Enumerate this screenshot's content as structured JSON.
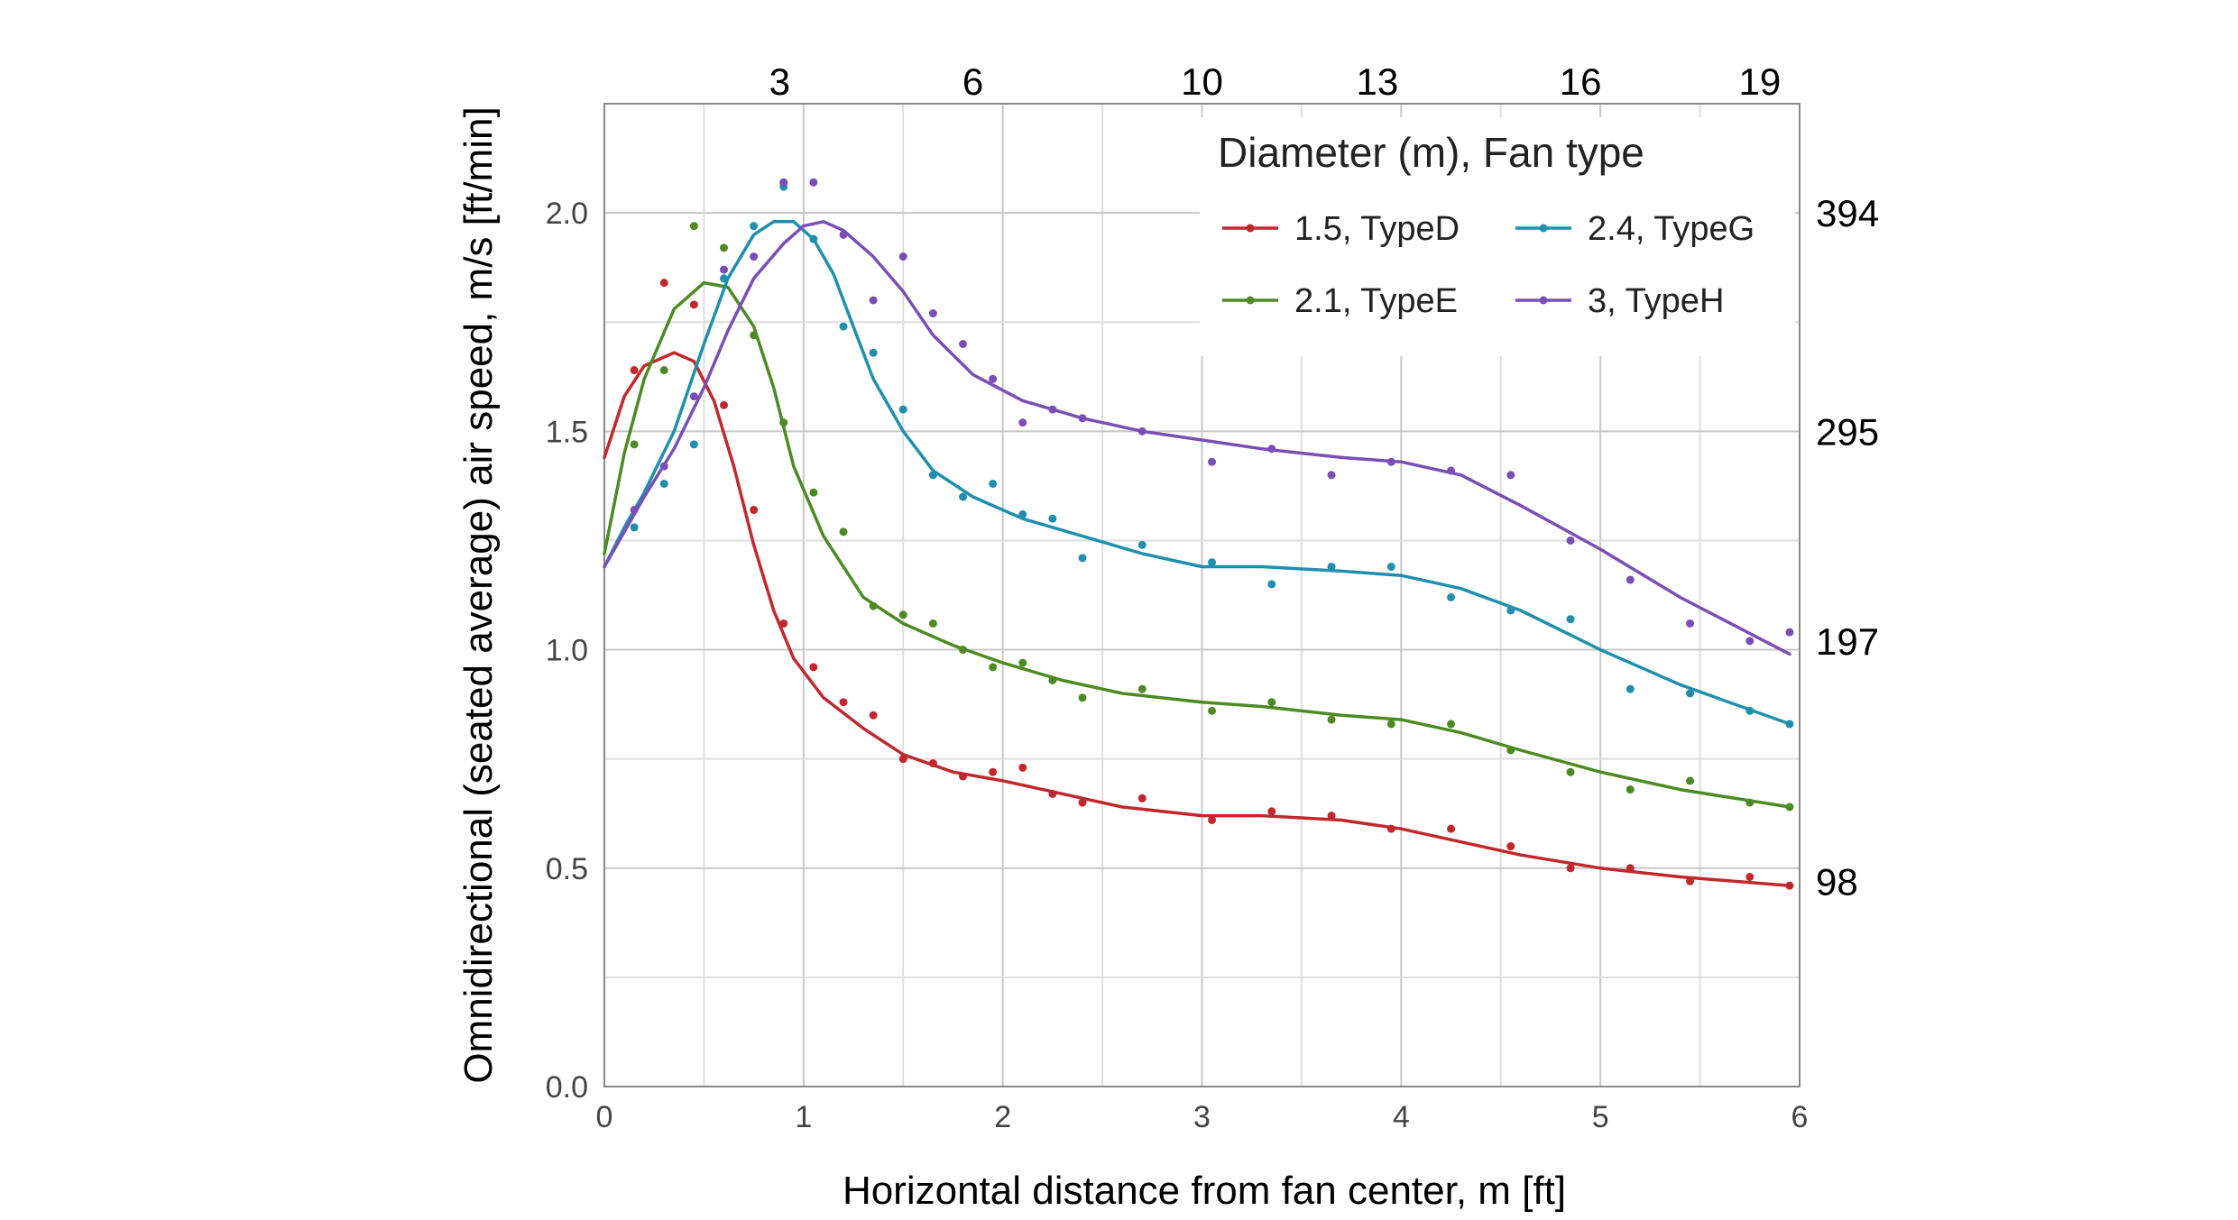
{
  "chart_data": {
    "type": "line",
    "title": "",
    "xlabel": "Horizontal distance from fan center, m [ft]",
    "ylabel": "Omnidirectional (seated average) air speed, m/s [ft/min]",
    "xlim": [
      0,
      6
    ],
    "ylim": [
      0,
      2.25
    ],
    "x_ticks": [
      "0",
      "1",
      "2",
      "3",
      "4",
      "5",
      "6"
    ],
    "y_ticks": [
      "0.0",
      "0.5",
      "1.0",
      "1.5",
      "2.0"
    ],
    "x_ticks_ft": [
      {
        "label": "3",
        "x": 0.88
      },
      {
        "label": "6",
        "x": 1.85
      },
      {
        "label": "10",
        "x": 3.0
      },
      {
        "label": "13",
        "x": 3.88
      },
      {
        "label": "16",
        "x": 4.9
      },
      {
        "label": "19",
        "x": 5.8
      }
    ],
    "y_ticks_ft": [
      {
        "label": "394",
        "y": 2.0
      },
      {
        "label": "295",
        "y": 1.5
      },
      {
        "label": "197",
        "y": 1.02
      },
      {
        "label": "98",
        "y": 0.47
      }
    ],
    "grid": true,
    "legend": {
      "title": "Diameter (m), Fan type",
      "placement": "top-right"
    },
    "series": [
      {
        "name": "1.5, TypeD",
        "color": "#c0282d",
        "curve": [
          [
            0,
            1.44
          ],
          [
            0.1,
            1.58
          ],
          [
            0.2,
            1.65
          ],
          [
            0.35,
            1.68
          ],
          [
            0.45,
            1.66
          ],
          [
            0.55,
            1.57
          ],
          [
            0.65,
            1.42
          ],
          [
            0.75,
            1.24
          ],
          [
            0.85,
            1.09
          ],
          [
            0.95,
            0.98
          ],
          [
            1.1,
            0.89
          ],
          [
            1.3,
            0.82
          ],
          [
            1.5,
            0.76
          ],
          [
            1.75,
            0.72
          ],
          [
            2.0,
            0.7
          ],
          [
            2.3,
            0.67
          ],
          [
            2.6,
            0.64
          ],
          [
            3.0,
            0.62
          ],
          [
            3.3,
            0.62
          ],
          [
            3.7,
            0.61
          ],
          [
            4.0,
            0.59
          ],
          [
            4.3,
            0.56
          ],
          [
            4.6,
            0.53
          ],
          [
            5.0,
            0.5
          ],
          [
            5.4,
            0.48
          ],
          [
            5.95,
            0.46
          ]
        ],
        "points": [
          [
            0.15,
            1.64
          ],
          [
            0.3,
            1.84
          ],
          [
            0.45,
            1.79
          ],
          [
            0.6,
            1.56
          ],
          [
            0.75,
            1.32
          ],
          [
            0.9,
            1.06
          ],
          [
            1.05,
            0.96
          ],
          [
            1.2,
            0.88
          ],
          [
            1.35,
            0.85
          ],
          [
            1.5,
            0.75
          ],
          [
            1.65,
            0.74
          ],
          [
            1.8,
            0.71
          ],
          [
            1.95,
            0.72
          ],
          [
            2.1,
            0.73
          ],
          [
            2.25,
            0.67
          ],
          [
            2.4,
            0.65
          ],
          [
            2.7,
            0.66
          ],
          [
            3.05,
            0.61
          ],
          [
            3.35,
            0.63
          ],
          [
            3.65,
            0.62
          ],
          [
            3.95,
            0.59
          ],
          [
            4.25,
            0.59
          ],
          [
            4.55,
            0.55
          ],
          [
            4.85,
            0.5
          ],
          [
            5.15,
            0.5
          ],
          [
            5.45,
            0.47
          ],
          [
            5.75,
            0.48
          ],
          [
            5.95,
            0.46
          ]
        ]
      },
      {
        "name": "2.1, TypeE",
        "color": "#4d8a24",
        "curve": [
          [
            0,
            1.22
          ],
          [
            0.1,
            1.45
          ],
          [
            0.2,
            1.62
          ],
          [
            0.35,
            1.78
          ],
          [
            0.5,
            1.84
          ],
          [
            0.62,
            1.83
          ],
          [
            0.75,
            1.74
          ],
          [
            0.85,
            1.6
          ],
          [
            0.95,
            1.42
          ],
          [
            1.1,
            1.26
          ],
          [
            1.3,
            1.12
          ],
          [
            1.5,
            1.06
          ],
          [
            1.75,
            1.01
          ],
          [
            2.0,
            0.97
          ],
          [
            2.3,
            0.93
          ],
          [
            2.6,
            0.9
          ],
          [
            3.0,
            0.88
          ],
          [
            3.3,
            0.87
          ],
          [
            3.7,
            0.85
          ],
          [
            4.0,
            0.84
          ],
          [
            4.3,
            0.81
          ],
          [
            4.6,
            0.77
          ],
          [
            5.0,
            0.72
          ],
          [
            5.4,
            0.68
          ],
          [
            5.95,
            0.64
          ]
        ],
        "points": [
          [
            0.15,
            1.47
          ],
          [
            0.3,
            1.64
          ],
          [
            0.45,
            1.97
          ],
          [
            0.6,
            1.92
          ],
          [
            0.75,
            1.72
          ],
          [
            0.9,
            1.52
          ],
          [
            1.05,
            1.36
          ],
          [
            1.2,
            1.27
          ],
          [
            1.35,
            1.1
          ],
          [
            1.5,
            1.08
          ],
          [
            1.65,
            1.06
          ],
          [
            1.8,
            1.0
          ],
          [
            1.95,
            0.96
          ],
          [
            2.1,
            0.97
          ],
          [
            2.25,
            0.93
          ],
          [
            2.4,
            0.89
          ],
          [
            2.7,
            0.91
          ],
          [
            3.05,
            0.86
          ],
          [
            3.35,
            0.88
          ],
          [
            3.65,
            0.84
          ],
          [
            3.95,
            0.83
          ],
          [
            4.25,
            0.83
          ],
          [
            4.55,
            0.77
          ],
          [
            4.85,
            0.72
          ],
          [
            5.15,
            0.68
          ],
          [
            5.45,
            0.7
          ],
          [
            5.75,
            0.65
          ],
          [
            5.95,
            0.64
          ]
        ]
      },
      {
        "name": "2.4, TypeG",
        "color": "#1f8fad",
        "curve": [
          [
            0,
            1.19
          ],
          [
            0.1,
            1.28
          ],
          [
            0.2,
            1.36
          ],
          [
            0.35,
            1.5
          ],
          [
            0.5,
            1.7
          ],
          [
            0.62,
            1.85
          ],
          [
            0.75,
            1.95
          ],
          [
            0.85,
            1.98
          ],
          [
            0.95,
            1.98
          ],
          [
            1.05,
            1.94
          ],
          [
            1.15,
            1.86
          ],
          [
            1.25,
            1.74
          ],
          [
            1.35,
            1.62
          ],
          [
            1.5,
            1.5
          ],
          [
            1.65,
            1.41
          ],
          [
            1.85,
            1.35
          ],
          [
            2.1,
            1.3
          ],
          [
            2.4,
            1.26
          ],
          [
            2.7,
            1.22
          ],
          [
            3.0,
            1.19
          ],
          [
            3.3,
            1.19
          ],
          [
            3.7,
            1.18
          ],
          [
            4.0,
            1.17
          ],
          [
            4.3,
            1.14
          ],
          [
            4.6,
            1.09
          ],
          [
            5.0,
            1.0
          ],
          [
            5.4,
            0.92
          ],
          [
            5.95,
            0.83
          ]
        ],
        "points": [
          [
            0.15,
            1.28
          ],
          [
            0.3,
            1.38
          ],
          [
            0.45,
            1.47
          ],
          [
            0.6,
            1.85
          ],
          [
            0.75,
            1.97
          ],
          [
            0.9,
            2.06
          ],
          [
            1.05,
            1.94
          ],
          [
            1.2,
            1.74
          ],
          [
            1.35,
            1.68
          ],
          [
            1.5,
            1.55
          ],
          [
            1.65,
            1.4
          ],
          [
            1.8,
            1.35
          ],
          [
            1.95,
            1.38
          ],
          [
            2.1,
            1.31
          ],
          [
            2.25,
            1.3
          ],
          [
            2.4,
            1.21
          ],
          [
            2.7,
            1.24
          ],
          [
            3.05,
            1.2
          ],
          [
            3.35,
            1.15
          ],
          [
            3.65,
            1.19
          ],
          [
            3.95,
            1.19
          ],
          [
            4.25,
            1.12
          ],
          [
            4.55,
            1.09
          ],
          [
            4.85,
            1.07
          ],
          [
            5.15,
            0.91
          ],
          [
            5.45,
            0.9
          ],
          [
            5.75,
            0.86
          ],
          [
            5.95,
            0.83
          ]
        ]
      },
      {
        "name": "3, TypeH",
        "color": "#7a4fb5",
        "curve": [
          [
            0,
            1.19
          ],
          [
            0.1,
            1.27
          ],
          [
            0.2,
            1.35
          ],
          [
            0.35,
            1.46
          ],
          [
            0.5,
            1.6
          ],
          [
            0.62,
            1.73
          ],
          [
            0.75,
            1.85
          ],
          [
            0.9,
            1.93
          ],
          [
            1.0,
            1.97
          ],
          [
            1.1,
            1.98
          ],
          [
            1.2,
            1.96
          ],
          [
            1.35,
            1.9
          ],
          [
            1.5,
            1.82
          ],
          [
            1.65,
            1.72
          ],
          [
            1.85,
            1.63
          ],
          [
            2.1,
            1.57
          ],
          [
            2.4,
            1.53
          ],
          [
            2.7,
            1.5
          ],
          [
            3.0,
            1.48
          ],
          [
            3.3,
            1.46
          ],
          [
            3.7,
            1.44
          ],
          [
            4.0,
            1.43
          ],
          [
            4.3,
            1.4
          ],
          [
            4.6,
            1.33
          ],
          [
            5.0,
            1.23
          ],
          [
            5.4,
            1.12
          ],
          [
            5.95,
            0.99
          ]
        ],
        "points": [
          [
            0.15,
            1.32
          ],
          [
            0.3,
            1.42
          ],
          [
            0.45,
            1.58
          ],
          [
            0.6,
            1.87
          ],
          [
            0.75,
            1.9
          ],
          [
            0.9,
            2.07
          ],
          [
            1.05,
            2.07
          ],
          [
            1.2,
            1.95
          ],
          [
            1.35,
            1.8
          ],
          [
            1.5,
            1.9
          ],
          [
            1.65,
            1.77
          ],
          [
            1.8,
            1.7
          ],
          [
            1.95,
            1.62
          ],
          [
            2.1,
            1.52
          ],
          [
            2.25,
            1.55
          ],
          [
            2.4,
            1.53
          ],
          [
            2.7,
            1.5
          ],
          [
            3.05,
            1.43
          ],
          [
            3.35,
            1.46
          ],
          [
            3.65,
            1.4
          ],
          [
            3.95,
            1.43
          ],
          [
            4.25,
            1.41
          ],
          [
            4.55,
            1.4
          ],
          [
            4.85,
            1.25
          ],
          [
            5.15,
            1.16
          ],
          [
            5.45,
            1.06
          ],
          [
            5.75,
            1.02
          ],
          [
            5.95,
            1.04
          ]
        ]
      }
    ]
  }
}
